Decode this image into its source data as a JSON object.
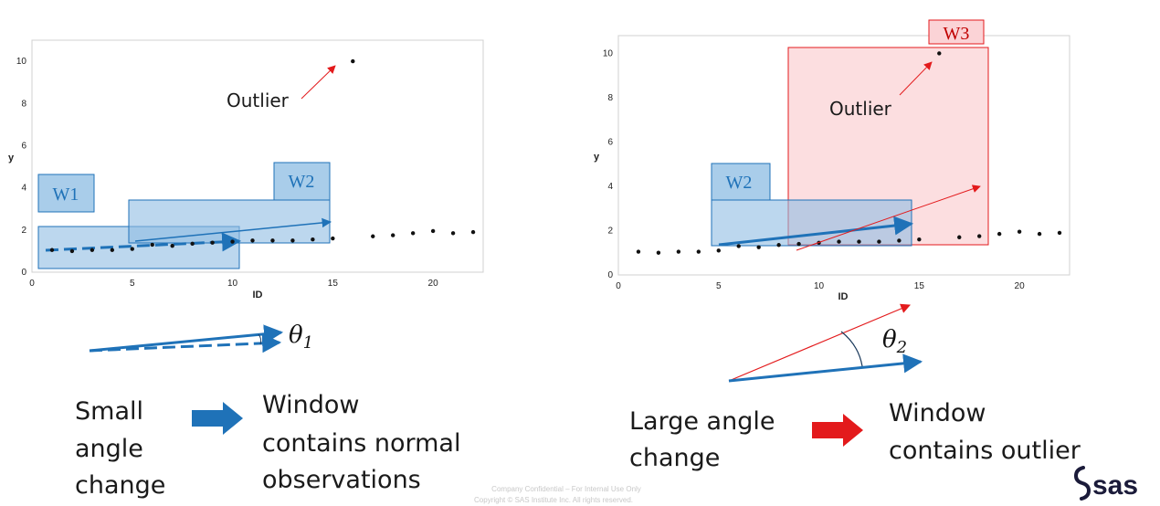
{
  "colors": {
    "blue": "#1f72b8",
    "blue_fill": "#8fbde3",
    "blue_label_fill": "#a9cdea",
    "red": "#e31a1c",
    "red_fill": "#fbd3d6",
    "points": "#111111"
  },
  "left_panel": {
    "outlier_label": "Outlier",
    "window1_label": "W1",
    "window2_label": "W2",
    "theta_symbol": "θ",
    "theta_subscript": "1",
    "caption": [
      "Small",
      "angle",
      "change"
    ],
    "result": [
      "Window",
      "contains normal",
      "observations"
    ]
  },
  "right_panel": {
    "outlier_label": "Outlier",
    "window2_label": "W2",
    "window3_label": "W3",
    "theta_symbol": "θ",
    "theta_subscript": "2",
    "caption": [
      "Large angle",
      "change"
    ],
    "result": [
      "Window",
      "contains outlier"
    ]
  },
  "footer": {
    "line1": "Company Confidential – For Internal Use Only",
    "line2": "Copyright © SAS Institute Inc. All rights reserved.",
    "logo": "sas"
  },
  "chart_data": [
    {
      "type": "scatter",
      "xlabel": "ID",
      "ylabel": "y",
      "xlim": [
        0,
        22.5
      ],
      "ylim": [
        0,
        11
      ],
      "x_ticks": [
        0,
        5,
        10,
        15,
        20
      ],
      "y_ticks": [
        0,
        2,
        4,
        6,
        8,
        10
      ],
      "grid": false,
      "points": [
        [
          1,
          1.05
        ],
        [
          2,
          1.0
        ],
        [
          3,
          1.05
        ],
        [
          4,
          1.05
        ],
        [
          5,
          1.1
        ],
        [
          6,
          1.3
        ],
        [
          7,
          1.25
        ],
        [
          8,
          1.35
        ],
        [
          9,
          1.4
        ],
        [
          10,
          1.45
        ],
        [
          11,
          1.5
        ],
        [
          12,
          1.5
        ],
        [
          13,
          1.5
        ],
        [
          14,
          1.55
        ],
        [
          15,
          1.6
        ],
        [
          16,
          10.0
        ],
        [
          17,
          1.7
        ],
        [
          18,
          1.75
        ],
        [
          19,
          1.85
        ],
        [
          20,
          1.95
        ],
        [
          21,
          1.85
        ],
        [
          22,
          1.9
        ]
      ]
    },
    {
      "type": "scatter",
      "xlabel": "ID",
      "ylabel": "y",
      "xlim": [
        0,
        22.5
      ],
      "ylim": [
        0,
        10.8
      ],
      "x_ticks": [
        0,
        5,
        10,
        15,
        20
      ],
      "y_ticks": [
        0,
        2,
        4,
        6,
        8,
        10
      ],
      "grid": false,
      "points": [
        [
          1,
          1.05
        ],
        [
          2,
          1.0
        ],
        [
          3,
          1.05
        ],
        [
          4,
          1.05
        ],
        [
          5,
          1.1
        ],
        [
          6,
          1.3
        ],
        [
          7,
          1.25
        ],
        [
          8,
          1.35
        ],
        [
          9,
          1.4
        ],
        [
          10,
          1.45
        ],
        [
          11,
          1.5
        ],
        [
          12,
          1.5
        ],
        [
          13,
          1.5
        ],
        [
          14,
          1.55
        ],
        [
          15,
          1.6
        ],
        [
          16,
          10.0
        ],
        [
          17,
          1.7
        ],
        [
          18,
          1.75
        ],
        [
          19,
          1.85
        ],
        [
          20,
          1.95
        ],
        [
          21,
          1.85
        ],
        [
          22,
          1.9
        ]
      ]
    }
  ]
}
